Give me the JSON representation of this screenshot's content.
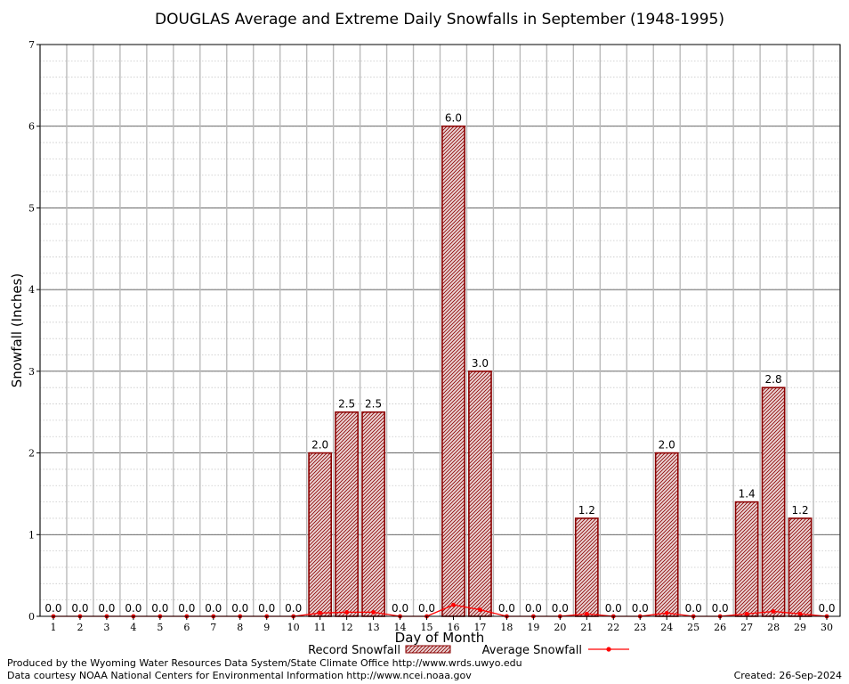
{
  "chart_data": {
    "type": "bar",
    "title": "DOUGLAS Average and Extreme Daily Snowfalls in September (1948-1995)",
    "xlabel": "Day of Month",
    "ylabel": "Snowfall (Inches)",
    "ylim": [
      0,
      7
    ],
    "yticks": [
      "0",
      "1",
      "2",
      "3",
      "4",
      "5",
      "6",
      "7"
    ],
    "grid": true,
    "legend_position": "bottom-center",
    "categories": [
      "1",
      "2",
      "3",
      "4",
      "5",
      "6",
      "7",
      "8",
      "9",
      "10",
      "11",
      "12",
      "13",
      "14",
      "15",
      "16",
      "17",
      "18",
      "19",
      "20",
      "21",
      "22",
      "23",
      "24",
      "25",
      "26",
      "27",
      "28",
      "29",
      "30"
    ],
    "series": [
      {
        "name": "Record Snowfall",
        "type": "bar",
        "values": [
          0,
          0,
          0,
          0,
          0,
          0,
          0,
          0,
          0,
          0,
          2.0,
          2.5,
          2.5,
          0,
          0,
          6.0,
          3.0,
          0,
          0,
          0,
          1.2,
          0,
          0,
          2.0,
          0,
          0,
          1.4,
          2.8,
          1.2,
          0
        ],
        "labels": [
          "0.0",
          "0.0",
          "0.0",
          "0.0",
          "0.0",
          "0.0",
          "0.0",
          "0.0",
          "0.0",
          "0.0",
          "2.0",
          "2.5",
          "2.5",
          "0.0",
          "0.0",
          "6.0",
          "3.0",
          "0.0",
          "0.0",
          "0.0",
          "1.2",
          "0.0",
          "0.0",
          "2.0",
          "0.0",
          "0.0",
          "1.4",
          "2.8",
          "1.2",
          "0.0"
        ]
      },
      {
        "name": "Average Snowfall",
        "type": "line",
        "values": [
          0,
          0,
          0,
          0,
          0,
          0,
          0,
          0,
          0,
          0,
          0.04,
          0.05,
          0.05,
          0,
          0,
          0.14,
          0.08,
          0,
          0,
          0,
          0.03,
          0,
          0,
          0.04,
          0,
          0,
          0.03,
          0.06,
          0.03,
          0
        ]
      }
    ],
    "colors": {
      "bar": "#8b0000",
      "bar_fill": "#d8a8a8",
      "line": "#ff0000",
      "grid": "#bbbbbb"
    }
  },
  "footer": {
    "producer": "Produced by the Wyoming Water Resources Data System/State Climate Office http://www.wrds.uwyo.edu",
    "courtesy": "Data courtesy NOAA National Centers for Environmental Information http://www.ncei.noaa.gov",
    "created": "Created:  26-Sep-2024"
  }
}
